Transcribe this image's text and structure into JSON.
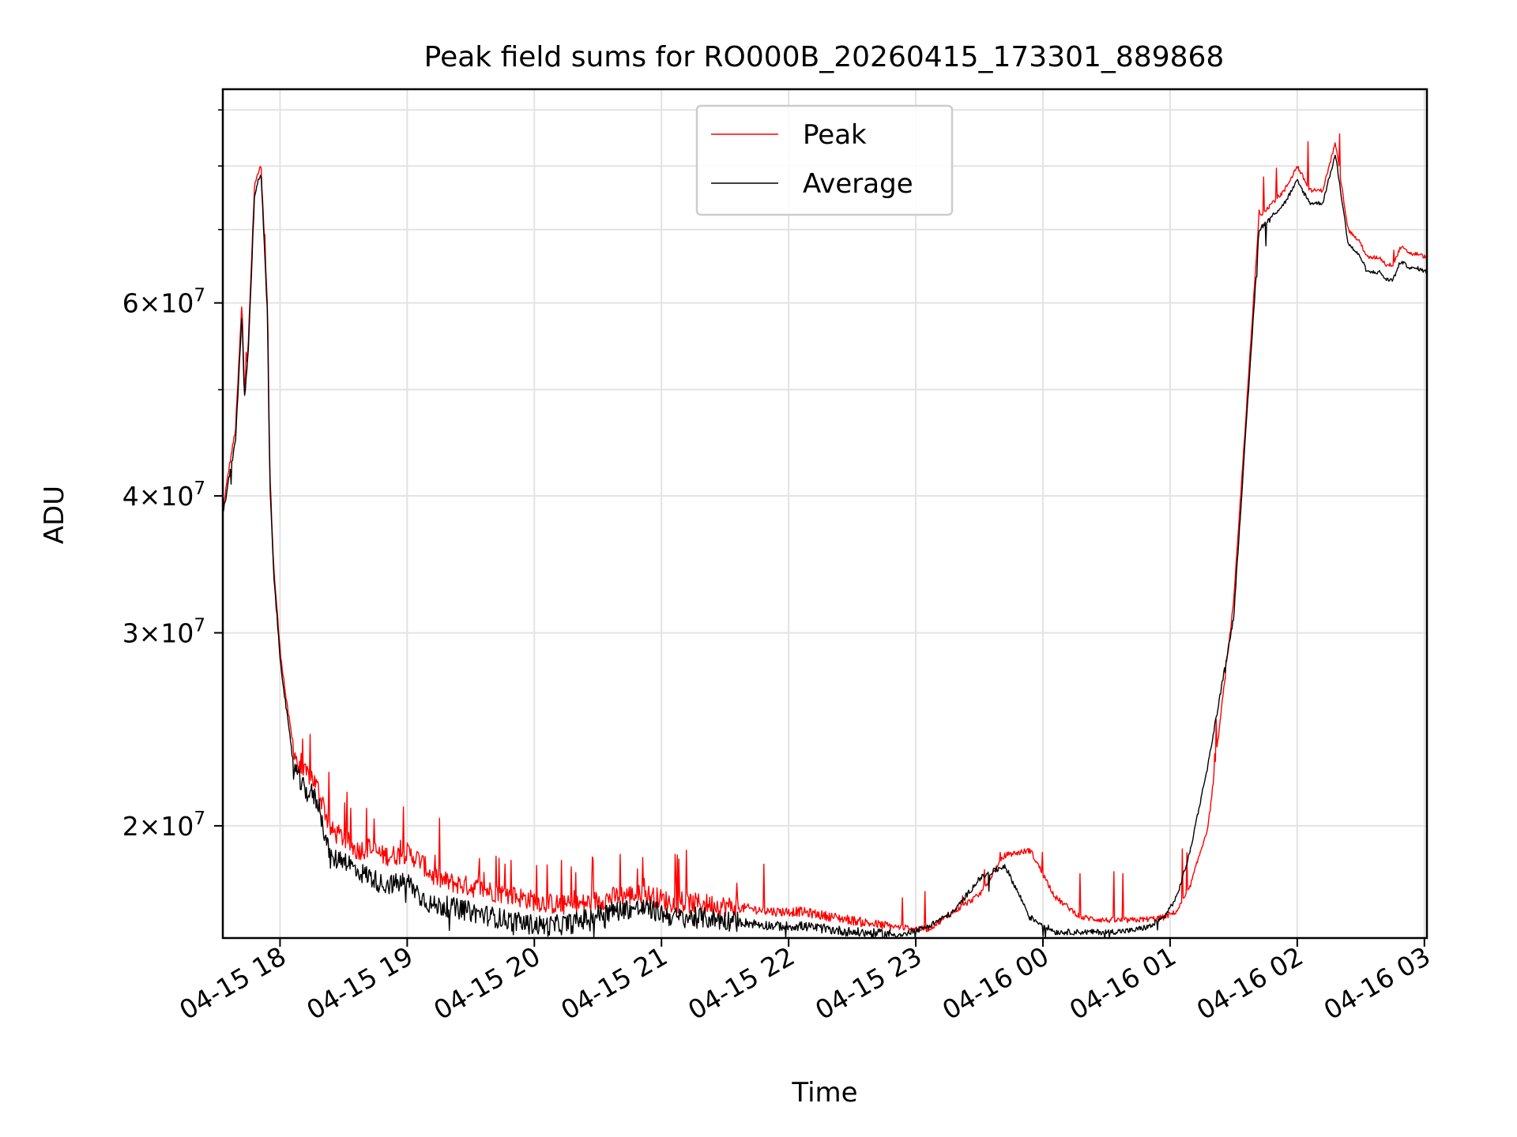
{
  "chart_data": {
    "type": "line",
    "title": "Peak field sums for RO000B_20260415_173301_889868",
    "xlabel": "Time",
    "ylabel": "ADU",
    "yscale": "log",
    "ylim": [
      15800000,
      94000000
    ],
    "xlim_hours": [
      17.55,
      27.02
    ],
    "grid": true,
    "legend_position": "upper center",
    "x_ticks": [
      {
        "hour": 18,
        "label": "04-15 18"
      },
      {
        "hour": 19,
        "label": "04-15 19"
      },
      {
        "hour": 20,
        "label": "04-15 20"
      },
      {
        "hour": 21,
        "label": "04-15 21"
      },
      {
        "hour": 22,
        "label": "04-15 22"
      },
      {
        "hour": 23,
        "label": "04-15 23"
      },
      {
        "hour": 24,
        "label": "04-16 00"
      },
      {
        "hour": 25,
        "label": "04-16 01"
      },
      {
        "hour": 26,
        "label": "04-16 02"
      },
      {
        "hour": 27,
        "label": "04-16 03"
      }
    ],
    "y_major_ticks": [
      {
        "value": 20000000,
        "mantissa": "2",
        "exponent": "7"
      },
      {
        "value": 30000000,
        "mantissa": "3",
        "exponent": "7"
      },
      {
        "value": 40000000,
        "mantissa": "4",
        "exponent": "7"
      },
      {
        "value": 60000000,
        "mantissa": "6",
        "exponent": "7"
      }
    ],
    "y_minor_ticks": [
      50000000,
      70000000,
      80000000,
      90000000
    ],
    "x_hours": [
      17.55,
      17.6,
      17.65,
      17.7,
      17.72,
      17.75,
      17.8,
      17.85,
      17.9,
      17.92,
      17.95,
      18.0,
      18.05,
      18.1,
      18.15,
      18.2,
      18.25,
      18.3,
      18.4,
      18.5,
      18.6,
      18.7,
      18.8,
      18.9,
      19.0,
      19.1,
      19.2,
      19.3,
      19.5,
      19.7,
      19.9,
      20.1,
      20.3,
      20.5,
      20.7,
      20.9,
      21.1,
      21.3,
      21.5,
      21.7,
      21.9,
      22.1,
      22.3,
      22.5,
      22.7,
      22.9,
      23.1,
      23.3,
      23.5,
      23.7,
      23.9,
      24.1,
      24.3,
      24.5,
      24.7,
      24.85,
      24.95,
      25.05,
      25.15,
      25.3,
      25.5,
      25.7,
      25.9,
      26.0,
      26.1,
      26.2,
      26.3,
      26.4,
      26.5,
      26.55,
      26.6,
      26.65,
      26.7,
      26.75,
      26.78,
      26.8,
      26.82,
      26.85,
      26.9,
      26.95,
      27.02
    ],
    "series": [
      {
        "name": "Peak",
        "color": "#ff0000",
        "values": [
          38800000,
          42500000,
          46000000,
          60000000,
          50000000,
          55000000,
          77000000,
          80000000,
          60000000,
          42000000,
          34500000,
          29000000,
          26000000,
          23800000,
          22500000,
          22300000,
          22200000,
          21600000,
          19800000,
          19500000,
          19000000,
          19100000,
          18800000,
          18800000,
          18900000,
          18600000,
          18000000,
          17800000,
          17600000,
          17400000,
          17200000,
          17000000,
          16900000,
          17100000,
          17300000,
          17300000,
          17000000,
          17000000,
          16900000,
          16800000,
          16700000,
          16700000,
          16550000,
          16400000,
          16250000,
          16150000,
          16100000,
          16700000,
          17300000,
          18800000,
          19000000,
          17200000,
          16500000,
          16400000,
          16400000,
          16450000,
          16500000,
          16700000,
          17500000,
          20000000,
          32000000,
          72000000,
          76000000,
          80000000,
          76000000,
          76000000,
          84000000,
          70000000,
          68000000,
          66000000,
          66000000,
          66000000,
          65000000,
          65000000,
          66000000,
          67000000,
          67500000,
          67000000,
          66500000,
          66500000,
          66000000
        ]
      },
      {
        "name": "Average",
        "color": "#000000",
        "values": [
          38500000,
          41500000,
          45000000,
          58500000,
          49000000,
          54000000,
          75500000,
          79000000,
          59000000,
          41000000,
          34000000,
          28500000,
          25500000,
          23000000,
          22000000,
          21500000,
          21400000,
          21000000,
          18600000,
          18700000,
          18200000,
          18000000,
          17700000,
          17700000,
          17800000,
          17300000,
          16900000,
          16900000,
          16700000,
          16500000,
          16300000,
          16200000,
          16300000,
          16600000,
          16800000,
          16800000,
          16500000,
          16500000,
          16400000,
          16300000,
          16200000,
          16200000,
          16100000,
          16000000,
          15950000,
          15900000,
          16200000,
          16700000,
          17900000,
          18400000,
          16500000,
          16000000,
          16000000,
          16000000,
          16050000,
          16200000,
          16500000,
          17200000,
          18800000,
          22800000,
          31000000,
          70000000,
          74000000,
          77500000,
          74000000,
          74000000,
          82000000,
          68000000,
          66000000,
          64000000,
          64000000,
          64000000,
          63000000,
          63000000,
          64000000,
          65000000,
          65500000,
          65000000,
          64500000,
          64500000,
          64000000
        ]
      }
    ]
  }
}
